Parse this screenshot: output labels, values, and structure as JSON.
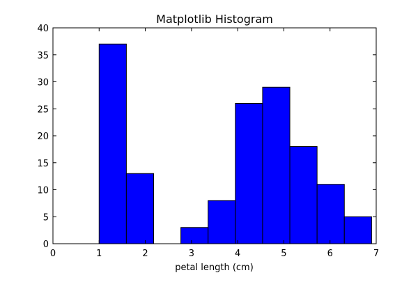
{
  "chart_data": {
    "type": "bar",
    "title": "Matplotlib Histogram",
    "xlabel": "petal length (cm)",
    "ylabel": "",
    "xlim": [
      0,
      7
    ],
    "ylim": [
      0,
      40
    ],
    "x_ticks": [
      0,
      1,
      2,
      3,
      4,
      5,
      6,
      7
    ],
    "y_ticks": [
      0,
      5,
      10,
      15,
      20,
      25,
      30,
      35,
      40
    ],
    "grid": false,
    "bar_color": "#0000ff",
    "edge_color": "#000000",
    "bins": [
      {
        "start": 1.0,
        "end": 1.59,
        "count": 37
      },
      {
        "start": 1.59,
        "end": 2.18,
        "count": 13
      },
      {
        "start": 2.18,
        "end": 2.77,
        "count": 0
      },
      {
        "start": 2.77,
        "end": 3.36,
        "count": 3
      },
      {
        "start": 3.36,
        "end": 3.95,
        "count": 8
      },
      {
        "start": 3.95,
        "end": 4.54,
        "count": 26
      },
      {
        "start": 4.54,
        "end": 5.13,
        "count": 29
      },
      {
        "start": 5.13,
        "end": 5.72,
        "count": 18
      },
      {
        "start": 5.72,
        "end": 6.31,
        "count": 11
      },
      {
        "start": 6.31,
        "end": 6.9,
        "count": 5
      }
    ]
  }
}
